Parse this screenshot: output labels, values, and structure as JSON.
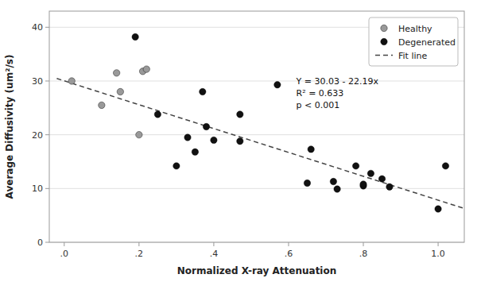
{
  "chart_data": {
    "type": "scatter",
    "x_label": "Normalized X-ray Attenuation",
    "y_label": "Average Diffusivity (um²/s)",
    "annotation": "Y = 30.03 - 22.19x\nR² = 0.633\np < 0.001",
    "xlim": [
      -0.04,
      1.07
    ],
    "ylim": [
      0,
      43
    ],
    "xticks": [
      {
        "value": 0.0,
        "label": ".0"
      },
      {
        "value": 0.2,
        "label": ".2"
      },
      {
        "value": 0.4,
        "label": ".4"
      },
      {
        "value": 0.6,
        "label": ".6"
      },
      {
        "value": 0.8,
        "label": ".8"
      },
      {
        "value": 1.0,
        "label": "1.0"
      }
    ],
    "yticks": [
      0,
      10,
      20,
      30,
      40
    ],
    "grid": "y",
    "legend": "upper right",
    "series": [
      {
        "name": "Healthy",
        "type": "scatter",
        "marker": "circle",
        "color": "#999999",
        "x": [
          0.02,
          0.1,
          0.14,
          0.15,
          0.2,
          0.21,
          0.22
        ],
        "values": [
          30.0,
          25.5,
          31.5,
          28.0,
          20.0,
          31.8,
          32.2
        ]
      },
      {
        "name": "Degenerated",
        "type": "scatter",
        "marker": "circle",
        "color": "#111111",
        "x": [
          0.19,
          0.25,
          0.3,
          0.33,
          0.35,
          0.37,
          0.38,
          0.4,
          0.47,
          0.47,
          0.57,
          0.65,
          0.66,
          0.72,
          0.73,
          0.78,
          0.8,
          0.8,
          0.82,
          0.85,
          0.87,
          1.0,
          1.02
        ],
        "values": [
          38.2,
          23.8,
          14.2,
          19.5,
          16.8,
          28.0,
          21.5,
          19.0,
          18.8,
          23.8,
          29.3,
          11.0,
          17.3,
          11.3,
          9.9,
          14.2,
          10.5,
          10.8,
          12.8,
          11.8,
          10.3,
          6.2,
          14.2
        ]
      },
      {
        "name": "Fit line",
        "type": "line",
        "line_style": "dashed",
        "color": "#444444",
        "x": [
          -0.02,
          1.07
        ],
        "values": [
          30.4738,
          6.2867
        ]
      }
    ]
  }
}
